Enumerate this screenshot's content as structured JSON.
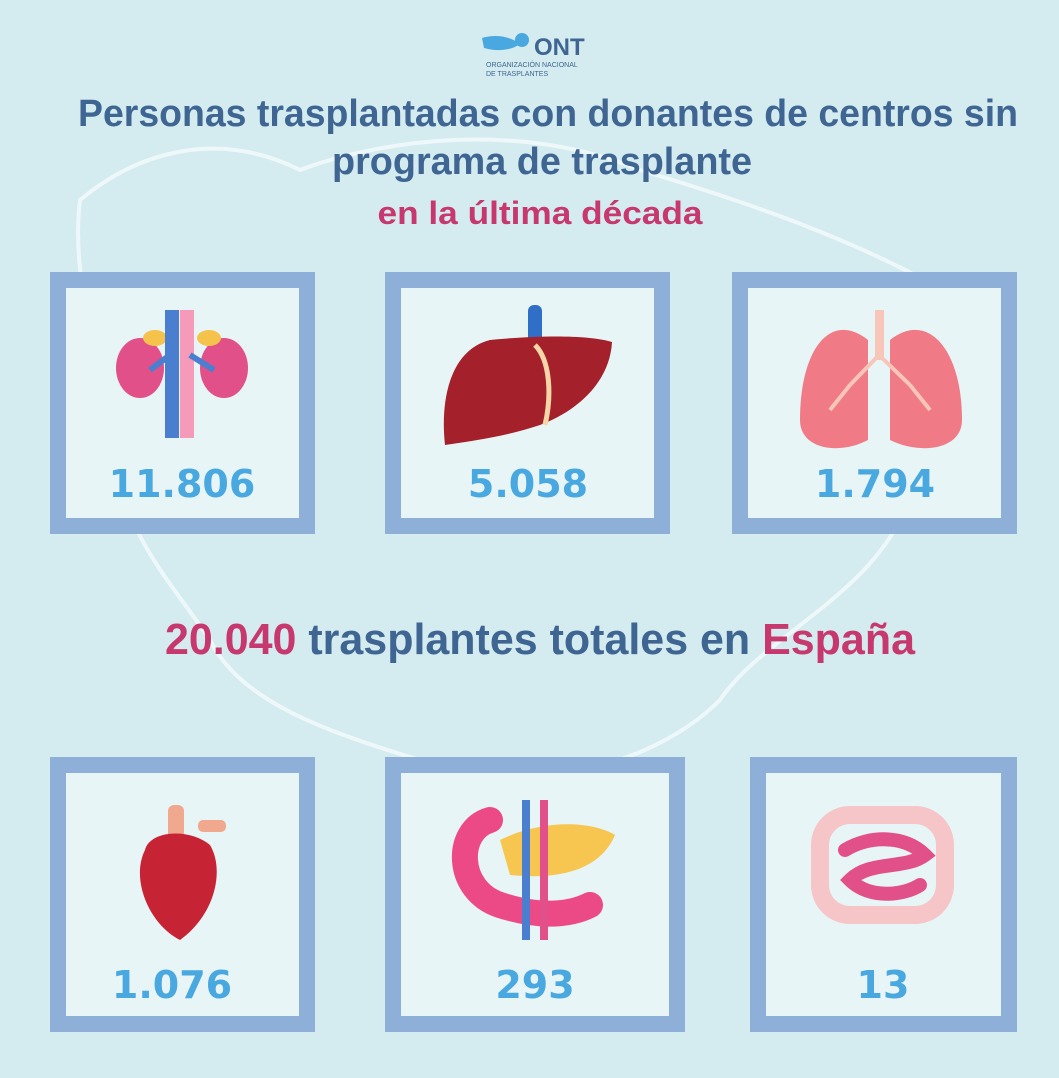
{
  "logo": {
    "name": "ONT",
    "subtitle_lines": [
      "ORGANIZACIÓN NACIONAL",
      "DE TRASPLANTES"
    ]
  },
  "header": {
    "title_lines": [
      "Personas trasplantadas con donantes de centros sin",
      "programa de trasplante"
    ],
    "subtitle": "en la última década"
  },
  "cards": [
    {
      "value": "11.806"
    },
    {
      "value": "5.058"
    },
    {
      "value": "1.794"
    },
    {
      "value": "1.076"
    },
    {
      "value": "293"
    },
    {
      "value": "13"
    }
  ],
  "total": {
    "number": "20.040",
    "text": "trasplantes totales en",
    "country": "España"
  }
}
